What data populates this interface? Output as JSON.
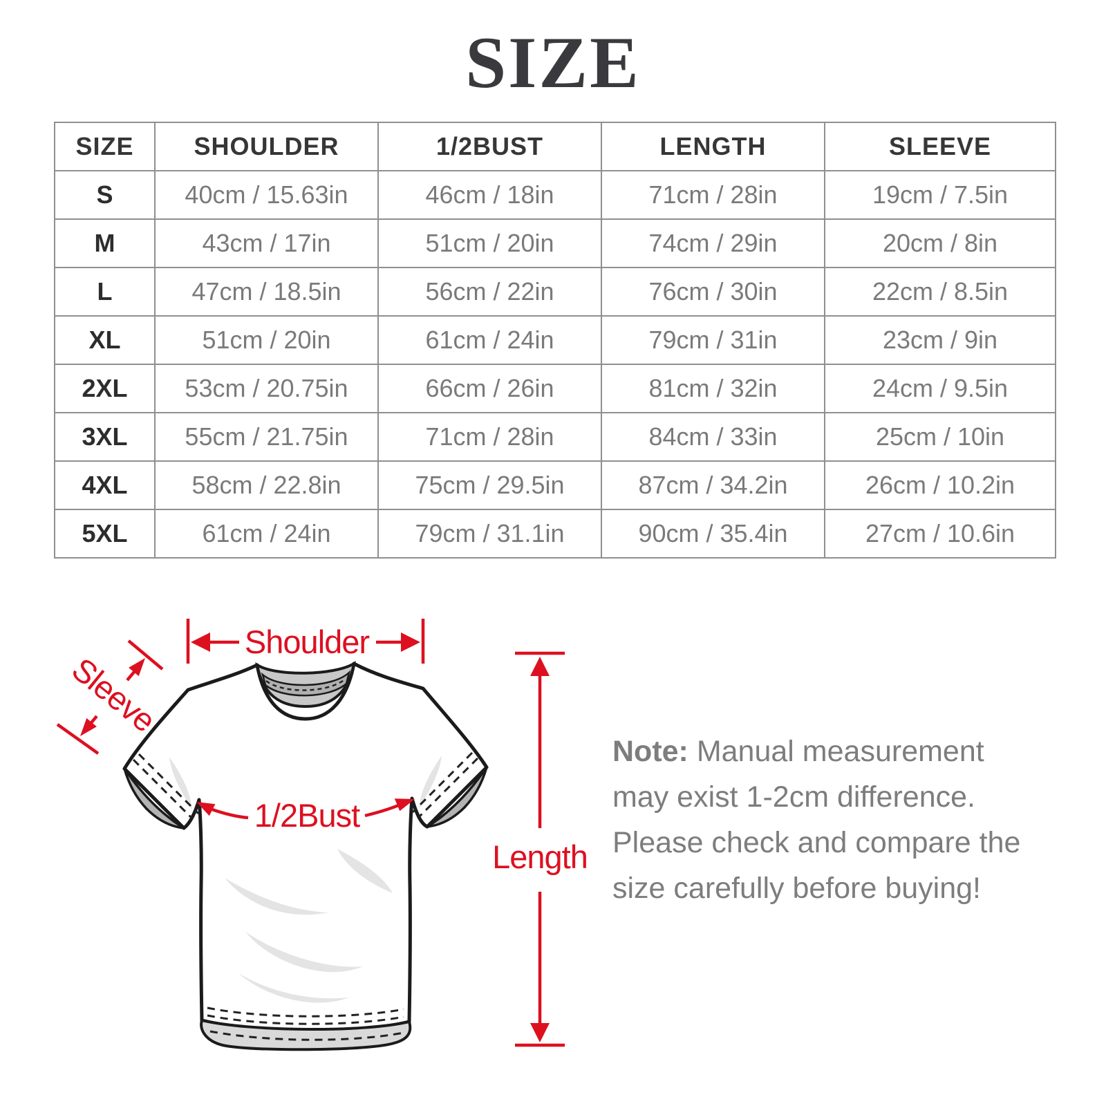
{
  "title": "SIZE",
  "chart_data": {
    "type": "table",
    "title": "SIZE",
    "columns": [
      "SIZE",
      "SHOULDER",
      "1/2BUST",
      "LENGTH",
      "SLEEVE"
    ],
    "rows": [
      [
        "S",
        "40cm / 15.63in",
        "46cm / 18in",
        "71cm / 28in",
        "19cm / 7.5in"
      ],
      [
        "M",
        "43cm / 17in",
        "51cm / 20in",
        "74cm / 29in",
        "20cm / 8in"
      ],
      [
        "L",
        "47cm / 18.5in",
        "56cm / 22in",
        "76cm / 30in",
        "22cm / 8.5in"
      ],
      [
        "XL",
        "51cm / 20in",
        "61cm / 24in",
        "79cm / 31in",
        "23cm / 9in"
      ],
      [
        "2XL",
        "53cm / 20.75in",
        "66cm / 26in",
        "81cm / 32in",
        "24cm / 9.5in"
      ],
      [
        "3XL",
        "55cm / 21.75in",
        "71cm / 28in",
        "84cm / 33in",
        "25cm / 10in"
      ],
      [
        "4XL",
        "58cm / 22.8in",
        "75cm / 29.5in",
        "87cm / 34.2in",
        "26cm / 10.2in"
      ],
      [
        "5XL",
        "61cm / 24in",
        "79cm / 31.1in",
        "90cm / 35.4in",
        "27cm / 10.6in"
      ]
    ]
  },
  "diagram": {
    "shoulder_label": "Shoulder",
    "sleeve_label": "Sleeve",
    "bust_label": "1/2Bust",
    "length_label": "Length",
    "annotation_color": "#dd1020"
  },
  "note": {
    "label": "Note:",
    "body": "Manual measurement may exist 1-2cm difference. Please check and compare the size carefully before buying!"
  },
  "colors": {
    "accent_red": "#dd1020",
    "title_text": "#3a3a3e",
    "table_header_text": "#363636",
    "table_value_text": "#7a7a7a",
    "table_border": "#8f8f8f",
    "note_text": "#7d7d7d",
    "shirt_outline": "#1b1b1b",
    "shirt_inner_gray": "#c8c8c8"
  }
}
